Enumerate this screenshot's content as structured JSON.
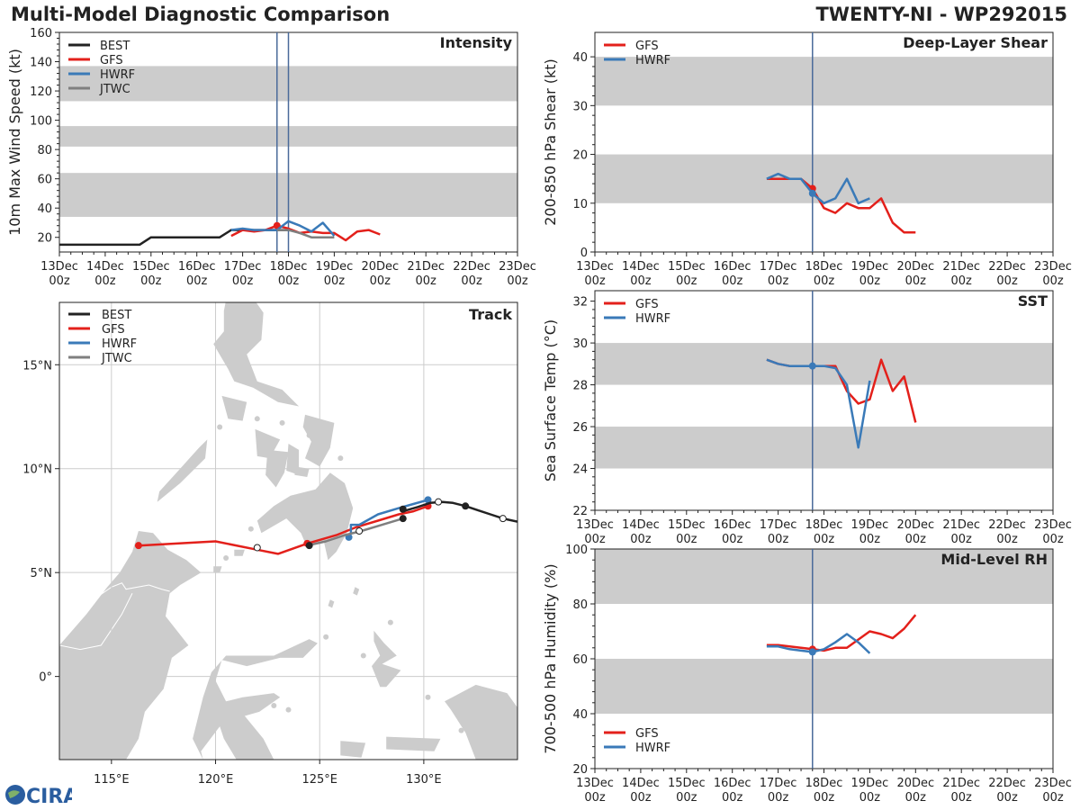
{
  "header": {
    "title": "Multi-Model Diagnostic Comparison",
    "storm": "TWENTY-NI - WP292015"
  },
  "logo": {
    "text": "CIRA"
  },
  "colors": {
    "BEST": "#222222",
    "GFS": "#e3201b",
    "HWRF": "#3a7ab8",
    "JTWC": "#7f7f7f",
    "band": "#cccccc",
    "grid": "#cccccc",
    "land": "#cccccc",
    "nowline": "#4a6a9a"
  },
  "time_ticks": [
    "13Dec\n00z",
    "14Dec\n00z",
    "15Dec\n00z",
    "16Dec\n00z",
    "17Dec\n00z",
    "18Dec\n00z",
    "19Dec\n00z",
    "20Dec\n00z",
    "21Dec\n00z",
    "22Dec\n00z",
    "23Dec\n00z"
  ],
  "chart_data": [
    {
      "id": "intensity",
      "type": "line",
      "title": "Intensity",
      "ylabel": "10m Max Wind Speed (kt)",
      "xlim": [
        0,
        10
      ],
      "ylim": [
        10,
        160
      ],
      "yticks": [
        20,
        40,
        60,
        80,
        100,
        120,
        140,
        160
      ],
      "bands": [
        [
          34,
          64
        ],
        [
          82,
          96
        ],
        [
          113,
          137
        ]
      ],
      "vlines": [
        4.75,
        5.0
      ],
      "legend": [
        "BEST",
        "GFS",
        "HWRF",
        "JTWC"
      ],
      "series": [
        {
          "name": "BEST",
          "x": [
            0,
            0.5,
            1,
            1.5,
            1.75,
            2,
            2.5,
            3,
            3.5,
            3.75,
            4,
            4.5,
            4.75,
            5
          ],
          "y": [
            15,
            15,
            15,
            15,
            15,
            20,
            20,
            20,
            20,
            25,
            25,
            25,
            25,
            25
          ],
          "points": []
        },
        {
          "name": "GFS",
          "x": [
            3.75,
            4,
            4.25,
            4.5,
            4.75,
            5,
            5.25,
            5.5,
            5.75,
            6,
            6.25,
            6.5,
            6.75,
            7
          ],
          "y": [
            21,
            25,
            24,
            25,
            28,
            26,
            23,
            24,
            23,
            23,
            18,
            24,
            25,
            22
          ],
          "points": [
            [
              4.75,
              28
            ]
          ]
        },
        {
          "name": "HWRF",
          "x": [
            3.75,
            4,
            4.25,
            4.5,
            4.75,
            5,
            5.25,
            5.5,
            5.75,
            6
          ],
          "y": [
            25,
            26,
            25,
            25,
            25,
            31,
            28,
            24,
            30,
            21
          ],
          "points": []
        },
        {
          "name": "JTWC",
          "x": [
            4.75,
            5,
            5.25,
            5.5,
            5.75,
            6
          ],
          "y": [
            25,
            25,
            23,
            20,
            20,
            20
          ],
          "points": []
        }
      ]
    },
    {
      "id": "shear",
      "type": "line",
      "title": "Deep-Layer Shear",
      "ylabel": "200-850 hPa Shear (kt)",
      "xlim": [
        0,
        10
      ],
      "ylim": [
        0,
        45
      ],
      "yticks": [
        0,
        10,
        20,
        30,
        40
      ],
      "bands": [
        [
          10,
          20
        ],
        [
          30,
          40
        ]
      ],
      "vlines": [
        4.75
      ],
      "legend": [
        "GFS",
        "HWRF"
      ],
      "series": [
        {
          "name": "GFS",
          "x": [
            3.75,
            4,
            4.25,
            4.5,
            4.75,
            5,
            5.25,
            5.5,
            5.75,
            6,
            6.25,
            6.5,
            6.75,
            7
          ],
          "y": [
            15,
            15,
            15,
            15,
            13,
            9,
            8,
            10,
            9,
            9,
            11,
            6,
            4,
            4
          ],
          "points": [
            [
              4.75,
              13
            ]
          ]
        },
        {
          "name": "HWRF",
          "x": [
            3.75,
            4,
            4.25,
            4.5,
            4.75,
            5,
            5.25,
            5.5,
            5.75,
            6
          ],
          "y": [
            15,
            16,
            15,
            15,
            12,
            10,
            11,
            15,
            10,
            11
          ],
          "points": [
            [
              4.75,
              12
            ]
          ]
        }
      ]
    },
    {
      "id": "sst",
      "type": "line",
      "title": "SST",
      "ylabel": "Sea Surface Temp (°C)",
      "xlim": [
        0,
        10
      ],
      "ylim": [
        22,
        32.5
      ],
      "yticks": [
        22,
        24,
        26,
        28,
        30,
        32
      ],
      "bands": [
        [
          24,
          26
        ],
        [
          28,
          30
        ]
      ],
      "vlines": [
        4.75
      ],
      "legend": [
        "GFS",
        "HWRF"
      ],
      "series": [
        {
          "name": "GFS",
          "x": [
            3.75,
            4,
            4.25,
            4.5,
            4.75,
            5,
            5.25,
            5.5,
            5.75,
            6,
            6.25,
            6.5,
            6.75,
            7
          ],
          "y": [
            29.2,
            29.0,
            28.9,
            28.9,
            28.9,
            28.9,
            28.9,
            27.7,
            27.1,
            27.3,
            29.2,
            27.7,
            28.4,
            26.2
          ],
          "points": []
        },
        {
          "name": "HWRF",
          "x": [
            3.75,
            4,
            4.25,
            4.5,
            4.75,
            5,
            5.25,
            5.5,
            5.75,
            6
          ],
          "y": [
            29.2,
            29.0,
            28.9,
            28.9,
            28.9,
            28.9,
            28.8,
            28.0,
            25.0,
            28.2
          ],
          "points": [
            [
              4.75,
              28.9
            ]
          ]
        }
      ]
    },
    {
      "id": "rh",
      "type": "line",
      "title": "Mid-Level RH",
      "ylabel": "700-500 hPa Humidity (%)",
      "xlim": [
        0,
        10
      ],
      "ylim": [
        20,
        100
      ],
      "yticks": [
        20,
        40,
        60,
        80,
        100
      ],
      "bands": [
        [
          40,
          60
        ],
        [
          80,
          100
        ]
      ],
      "vlines": [
        4.75
      ],
      "legend": [
        "GFS",
        "HWRF"
      ],
      "legend_pos": "lower-left",
      "series": [
        {
          "name": "GFS",
          "x": [
            3.75,
            4,
            4.25,
            4.5,
            4.75,
            5,
            5.25,
            5.5,
            5.75,
            6,
            6.25,
            6.5,
            6.75,
            7
          ],
          "y": [
            65,
            65,
            64.5,
            64,
            63.5,
            63,
            64,
            64,
            67,
            70,
            69,
            67.5,
            71,
            76
          ],
          "points": [
            [
              4.75,
              63.5
            ]
          ]
        },
        {
          "name": "HWRF",
          "x": [
            3.75,
            4,
            4.25,
            4.5,
            4.75,
            5,
            5.25,
            5.5,
            5.75,
            6
          ],
          "y": [
            64.5,
            64.5,
            63.5,
            63,
            62.5,
            63.5,
            66,
            69,
            66,
            62
          ],
          "points": [
            [
              4.75,
              62.5
            ]
          ]
        }
      ]
    },
    {
      "id": "track",
      "type": "map",
      "title": "Track",
      "lon_range": [
        112.5,
        134.5
      ],
      "lat_range": [
        -4,
        18
      ],
      "xticks": [
        {
          "v": 115,
          "label": "115°E"
        },
        {
          "v": 120,
          "label": "120°E"
        },
        {
          "v": 125,
          "label": "125°E"
        },
        {
          "v": 130,
          "label": "130°E"
        }
      ],
      "yticks": [
        {
          "v": 0,
          "label": "0°"
        },
        {
          "v": 5,
          "label": "5°N"
        },
        {
          "v": 10,
          "label": "10°N"
        },
        {
          "v": 15,
          "label": "15°N"
        }
      ],
      "legend": [
        "BEST",
        "GFS",
        "HWRF",
        "JTWC"
      ],
      "series": [
        {
          "name": "BEST",
          "lon": [
            134.5,
            133.8,
            133.2,
            132.6,
            132.0,
            131.4,
            130.9,
            130.3,
            129.7,
            129.0
          ],
          "lat": [
            7.45,
            7.6,
            7.8,
            8.0,
            8.2,
            8.35,
            8.4,
            8.35,
            8.15,
            7.95
          ],
          "points": [
            {
              "lon": 133.8,
              "lat": 7.6,
              "fill": "open"
            },
            {
              "lon": 132.0,
              "lat": 8.2,
              "fill": "solid"
            },
            {
              "lon": 130.7,
              "lat": 8.4,
              "fill": "open"
            },
            {
              "lon": 129.0,
              "lat": 8.05,
              "fill": "solid"
            }
          ]
        },
        {
          "name": "GFS",
          "lon": [
            130.2,
            129.5,
            128.8,
            127.8,
            126.8,
            125.8,
            124.4,
            123.0,
            122.0,
            120.0,
            116.3
          ],
          "lat": [
            8.2,
            7.95,
            7.8,
            7.5,
            7.2,
            6.8,
            6.4,
            5.9,
            6.1,
            6.5,
            6.3
          ],
          "points": [
            {
              "lon": 130.2,
              "lat": 8.2,
              "fill": "solid"
            },
            {
              "lon": 124.4,
              "lat": 6.4,
              "fill": "solid"
            },
            {
              "lon": 122.0,
              "lat": 6.2,
              "fill": "open"
            },
            {
              "lon": 116.3,
              "lat": 6.3,
              "fill": "solid"
            }
          ]
        },
        {
          "name": "HWRF",
          "lon": [
            130.2,
            129.5,
            128.8,
            127.8,
            126.9,
            126.5,
            126.5
          ],
          "lat": [
            8.5,
            8.3,
            8.1,
            7.8,
            7.3,
            7.3,
            6.9
          ],
          "points": [
            {
              "lon": 130.2,
              "lat": 8.5,
              "fill": "solid"
            },
            {
              "lon": 126.4,
              "lat": 6.7,
              "fill": "solid"
            }
          ]
        },
        {
          "name": "JTWC",
          "lon": [
            129.0,
            128.0,
            127.0,
            126.2,
            125.3,
            124.4
          ],
          "lat": [
            7.6,
            7.3,
            7.0,
            6.8,
            6.5,
            6.3
          ],
          "points": [
            {
              "lon": 129.0,
              "lat": 7.6,
              "fill": "solid"
            },
            {
              "lon": 126.9,
              "lat": 7.0,
              "fill": "open"
            },
            {
              "lon": 124.5,
              "lat": 6.3,
              "fill": "solid"
            }
          ]
        }
      ]
    }
  ]
}
